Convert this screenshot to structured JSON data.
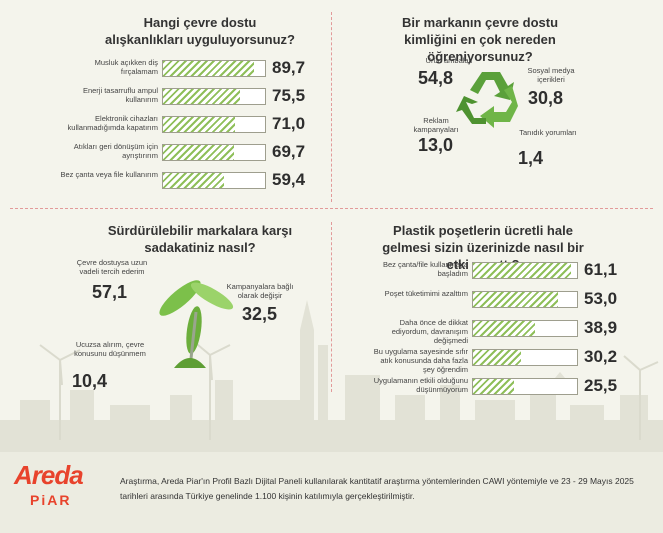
{
  "colors": {
    "bar_fill": "#8fbf5a",
    "accent_red": "#e8432c",
    "divider": "#e29a9a"
  },
  "chart_data": [
    {
      "type": "bar",
      "orientation": "horizontal",
      "title": "Hangi çevre dostu alışkanlıkları uyguluyorsunuz?",
      "categories": [
        "Musluk açıkken diş fırçalamam",
        "Enerji tasarruflu ampul kullanırım",
        "Elektronik cihazları kullanmadığımda kapatırım",
        "Atıkları geri dönüşüm için ayrıştırırım",
        "Bez çanta veya file kullanırım"
      ],
      "values": [
        "89,7",
        "75,5",
        "71,0",
        "69,7",
        "59,4"
      ],
      "numeric_values": [
        89.7,
        75.5,
        71.0,
        69.7,
        59.4
      ],
      "xlim": [
        0,
        100
      ]
    },
    {
      "type": "pie",
      "title": "Bir markanın çevre dostu kimliğini en çok nereden öğreniyorsunuz?",
      "categories": [
        "Ürün ambalajı",
        "Sosyal medya içerikleri",
        "Reklam kampanyaları",
        "Tanıdık yorumları"
      ],
      "values": [
        "54,8",
        "30,8",
        "13,0",
        "1,4"
      ],
      "numeric_values": [
        54.8,
        30.8,
        13.0,
        1.4
      ],
      "icon": "recycle-icon"
    },
    {
      "type": "pie",
      "title": "Sürdürülebilir markalara karşı sadakatiniz nasıl?",
      "categories": [
        "Çevre dostuysa uzun vadeli tercih ederim",
        "Kampanyalara bağlı olarak değişir",
        "Ucuzsa alırım, çevre konusunu düşünmem"
      ],
      "values": [
        "57,1",
        "32,5",
        "10,4"
      ],
      "numeric_values": [
        57.1,
        32.5,
        10.4
      ],
      "icon": "wind-turbine-icon"
    },
    {
      "type": "bar",
      "orientation": "horizontal",
      "title": "Plastik poşetlerin ücretli hale gelmesi sizin üzerinizde nasıl bir etki yarattı?",
      "categories": [
        "Bez çanta/file kullanmaya başladım",
        "Poşet tüketimimi azalttım",
        "Daha önce de dikkat ediyordum, davranışım değişmedi",
        "Bu uygulama sayesinde sıfır atık konusunda daha fazla şey öğrendim",
        "Uygulamanın etkili olduğunu düşünmüyorum"
      ],
      "values": [
        "61,1",
        "53,0",
        "38,9",
        "30,2",
        "25,5"
      ],
      "numeric_values": [
        61.1,
        53.0,
        38.9,
        30.2,
        25.5
      ],
      "xlim": [
        0,
        65
      ]
    }
  ],
  "footer": {
    "logo_top": "Areda",
    "logo_bottom": "PiAR",
    "note_line1": "Araştırma, Areda Piar'ın Profil Bazlı Dijital Paneli kullanılarak kantitatif araştırma yöntemlerinden CAWI yöntemiyle ve 23 - 29 Mayıs 2025",
    "note_line2": "tarihleri arasında Türkiye genelinde 1.100 kişinin katılımıyla gerçekleştirilmiştir."
  }
}
